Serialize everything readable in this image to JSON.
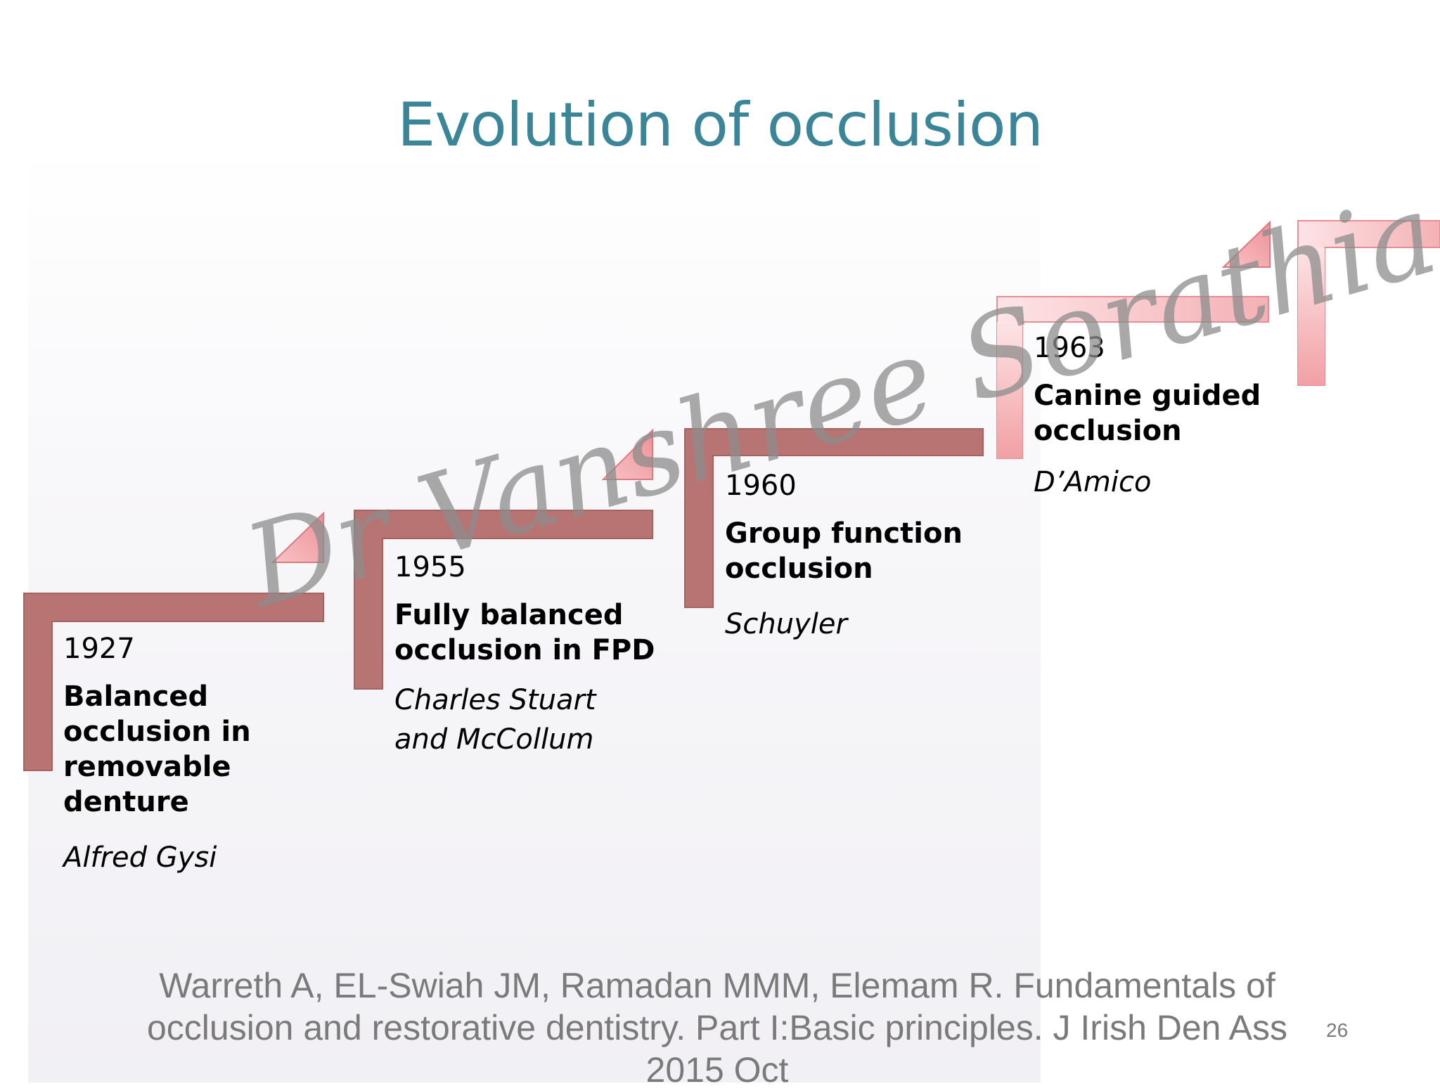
{
  "slide": {
    "title": "Evolution of occlusion",
    "watermark": "Dr Vanshree Sorathia",
    "citation": "Warreth A, EL-Swiah JM, Ramadan MMM, Elemam R. Fundamentals of occlusion and restorative dentistry. Part I:Basic principles. J Irish Den Ass 2015 Oct",
    "page_number": "26"
  },
  "colors": {
    "title": "#3a8698",
    "step_dark": "#b87472",
    "step_light_top": "#fde4e6",
    "step_light_bottom": "#f1a0a4",
    "citation": "#7a7a7a"
  },
  "milestones": [
    {
      "year": "1927",
      "event": "Balanced occlusion in removable denture",
      "author": "Alfred Gysi"
    },
    {
      "year": "1955",
      "event": "Fully balanced occlusion in FPD",
      "author": "Charles Stuart and McCollum"
    },
    {
      "year": "1960",
      "event": "Group function occlusion",
      "author": "Schuyler"
    },
    {
      "year": "1963",
      "event": "Canine guided occlusion",
      "author": "D’Amico"
    }
  ]
}
